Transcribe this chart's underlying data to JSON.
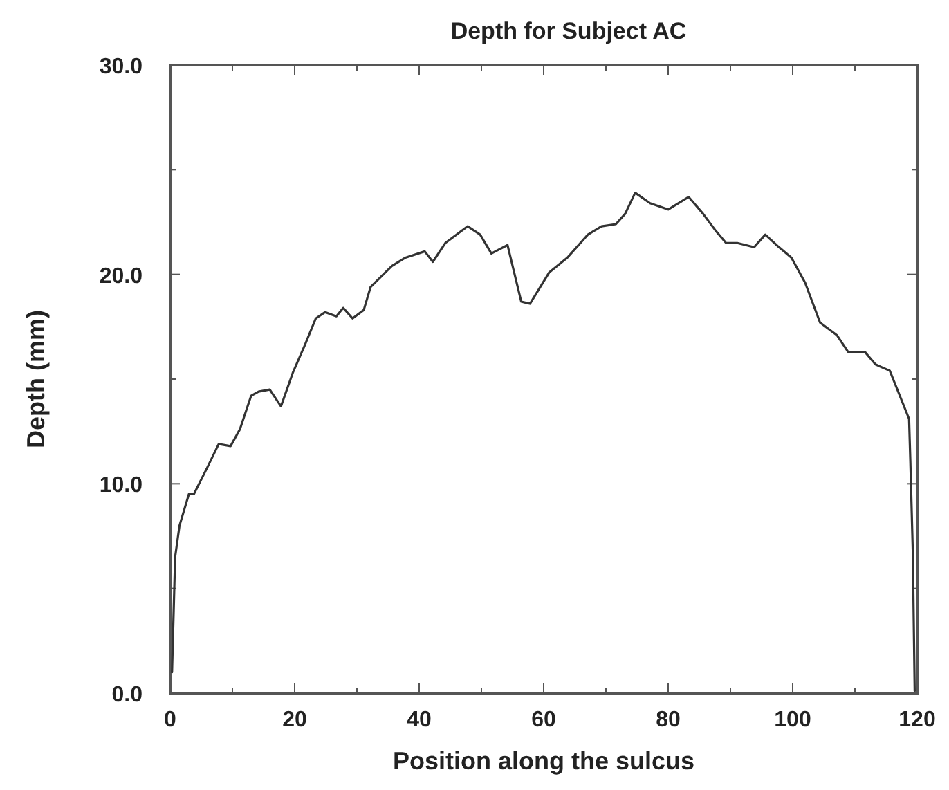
{
  "chart_data": {
    "type": "line",
    "title": "Depth for Subject AC",
    "xlabel": "Position along the sulcus",
    "ylabel": "Depth (mm)",
    "xlim": [
      0,
      120
    ],
    "ylim": [
      0,
      30
    ],
    "xticks": [
      0,
      {
        "value": 10,
        "label": null
      },
      20,
      {
        "value": 30,
        "label": null
      },
      40,
      {
        "value": 50,
        "label": null
      },
      60,
      {
        "value": 70,
        "label": null
      },
      80,
      {
        "value": 90,
        "label": null
      },
      100,
      {
        "value": 110,
        "label": null
      },
      120
    ],
    "yticks": [
      {
        "value": 0,
        "label": "0.0"
      },
      {
        "value": 5,
        "label": null
      },
      {
        "value": 10,
        "label": "10.0"
      },
      {
        "value": 15,
        "label": null
      },
      {
        "value": 20,
        "label": "20.0"
      },
      {
        "value": 25,
        "label": null
      },
      {
        "value": 30,
        "label": "30.0"
      }
    ],
    "grid": false,
    "line_style": "solid",
    "marker": "none",
    "series": [
      {
        "color": "#333333",
        "x": [
          0.3,
          0.8,
          1.5,
          3,
          3.8,
          6,
          7.8,
          9.7,
          11.2,
          13,
          14.2,
          16,
          17.8,
          19.7,
          21.6,
          23.4,
          24.9,
          26.7,
          27.8,
          29.3,
          31.1,
          32.2,
          35.6,
          37.8,
          40.9,
          42.2,
          44.2,
          47.8,
          49.8,
          51.6,
          54.2,
          56.4,
          57.8,
          60.9,
          63.8,
          67.1,
          69.3,
          71.6,
          73.1,
          74.7,
          77.1,
          80,
          83.3,
          85.6,
          87.6,
          89.3,
          91.1,
          93.8,
          95.6,
          97.8,
          99.8,
          102,
          104.4,
          107.1,
          108.9,
          111.6,
          113.3,
          115.6,
          118.7,
          118.9,
          119.3,
          119.6
        ],
        "values": [
          1,
          6.5,
          8,
          9.5,
          9.5,
          10.8,
          11.9,
          11.8,
          12.6,
          14.2,
          14.4,
          14.5,
          13.7,
          15.3,
          16.6,
          17.9,
          18.2,
          18,
          18.4,
          17.9,
          18.3,
          19.4,
          20.4,
          20.8,
          21.1,
          20.6,
          21.5,
          22.3,
          21.9,
          21,
          21.4,
          18.7,
          18.6,
          20.1,
          20.8,
          21.9,
          22.3,
          22.4,
          22.9,
          23.9,
          23.4,
          23.1,
          23.7,
          22.9,
          22.1,
          21.5,
          21.5,
          21.3,
          21.9,
          21.3,
          20.8,
          19.6,
          17.7,
          17.1,
          16.3,
          16.3,
          15.7,
          15.4,
          13.1,
          11.1,
          6.7,
          0.1
        ]
      }
    ]
  }
}
